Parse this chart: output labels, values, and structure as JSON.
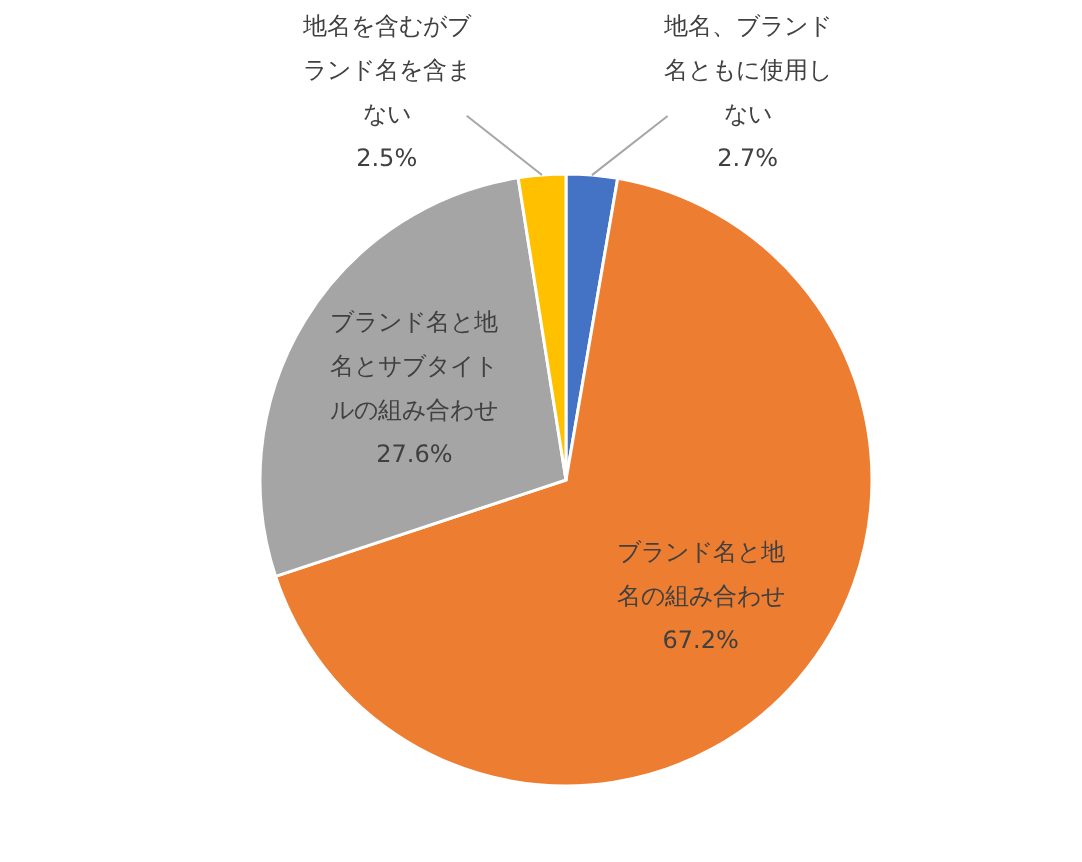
{
  "chart_data": {
    "type": "pie",
    "categories": [
      "地名、ブランド名ともに使用しない",
      "ブランド名と地名の組み合わせ",
      "ブランド名と地名とサブタイトルの組み合わせ",
      "地名を含むがブランド名を含まない"
    ],
    "values": [
      2.7,
      67.2,
      27.6,
      2.5
    ],
    "colors": [
      "#4472c4",
      "#ed7d31",
      "#a5a5a5",
      "#ffc000"
    ],
    "value_labels": [
      "2.7%",
      "67.2%",
      "27.6%",
      "2.5%"
    ],
    "legend": false
  }
}
